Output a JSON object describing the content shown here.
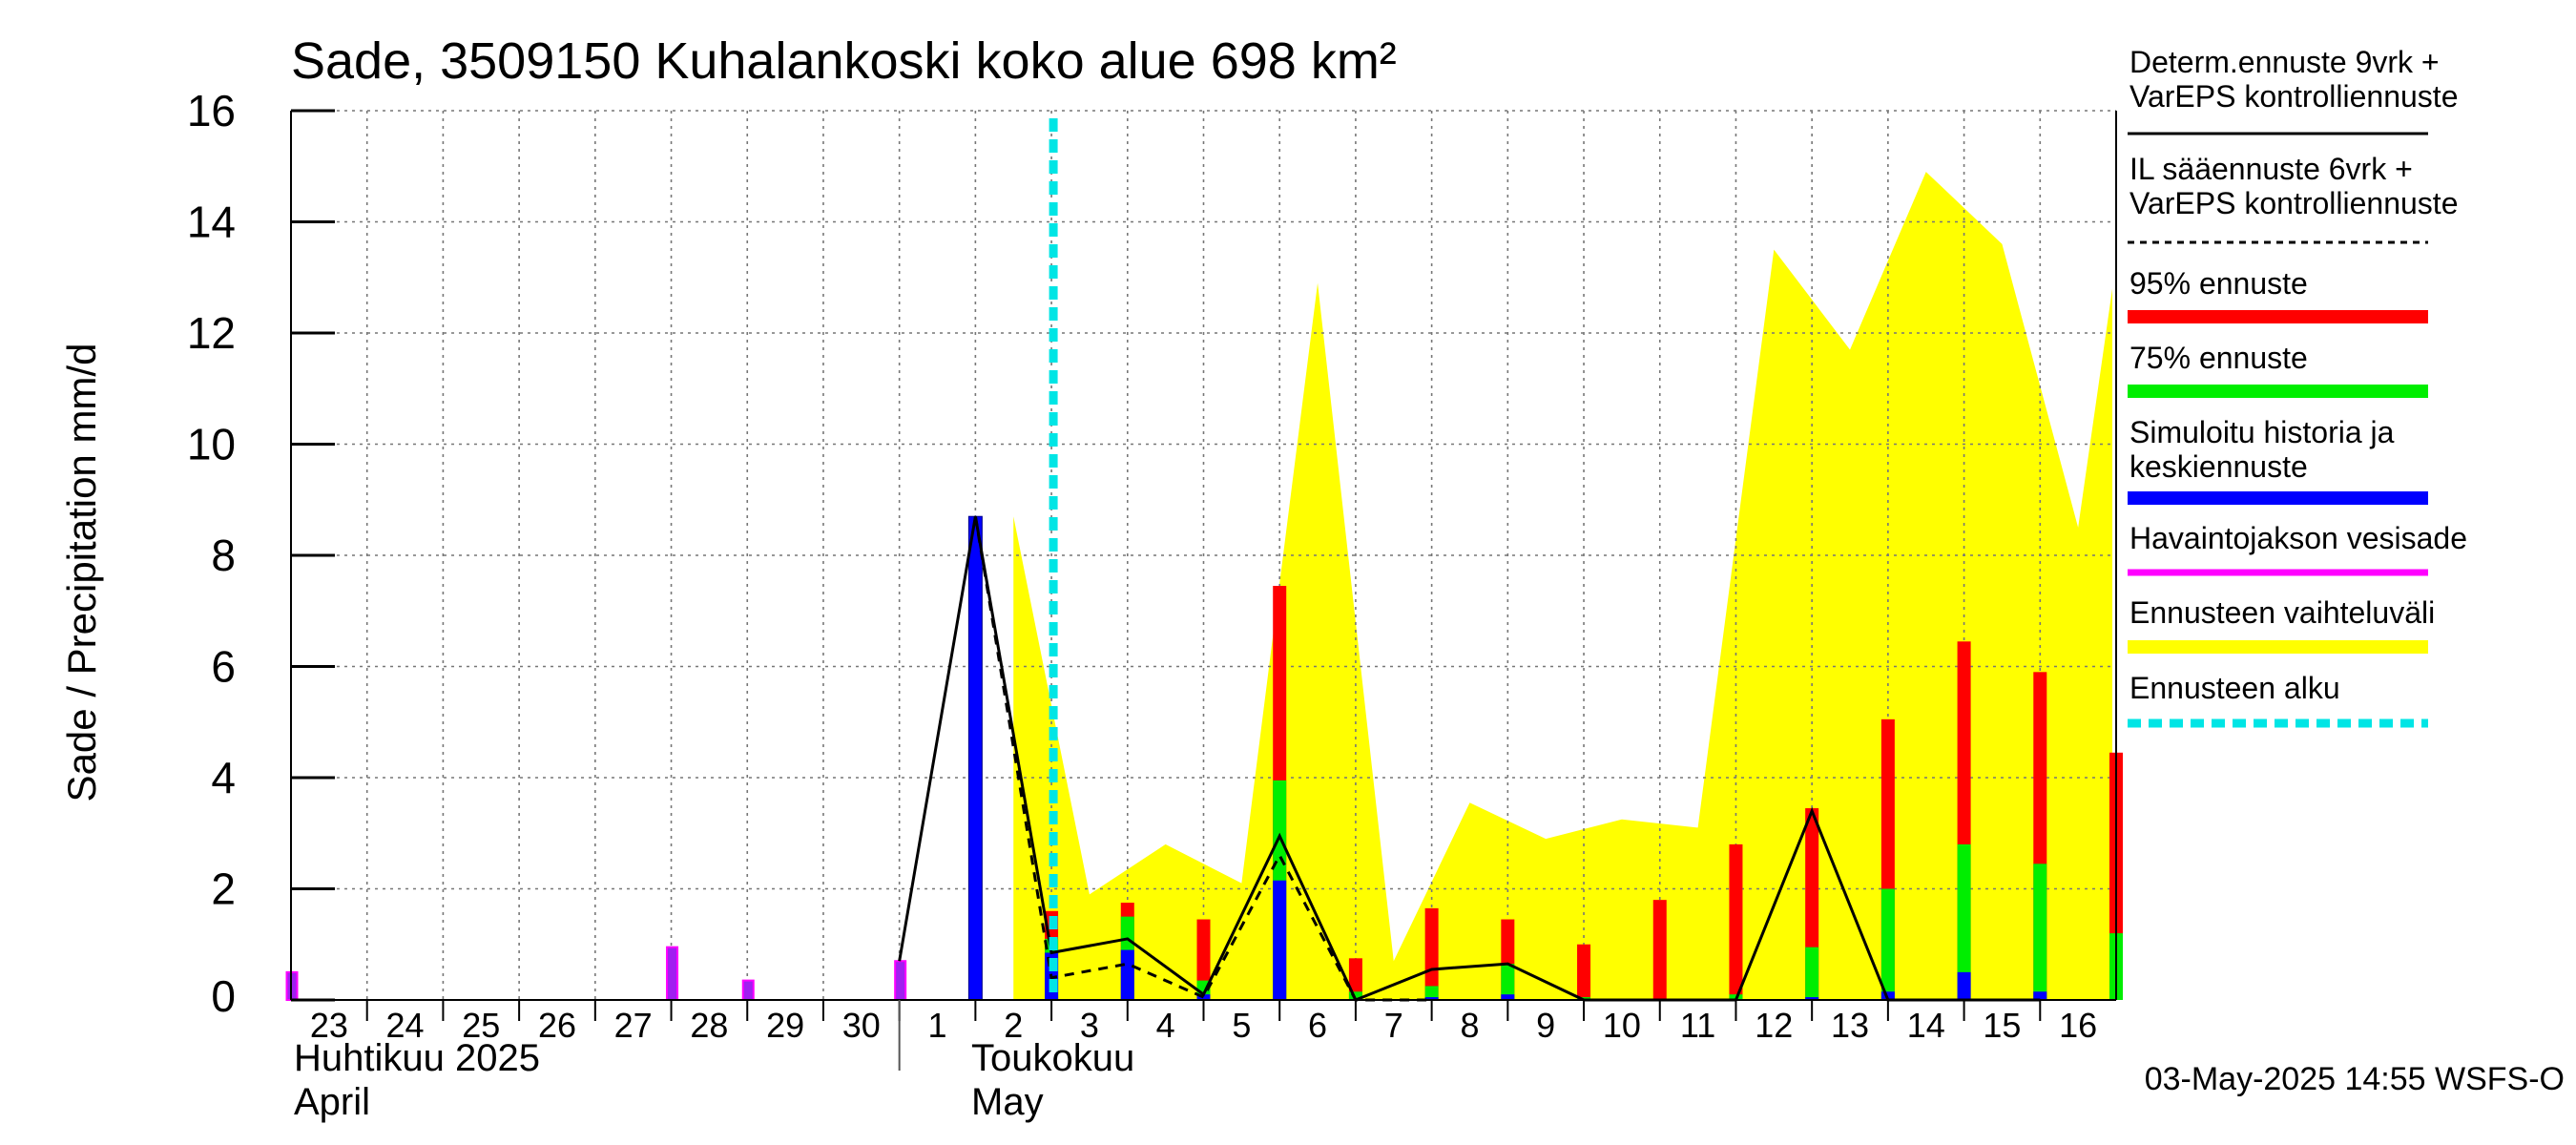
{
  "chart_data": {
    "type": "bar",
    "title": "Sade, 3509150 Kuhalankoski koko alue 698 km²",
    "ylabel": "Sade / Precipitation   mm/d",
    "ylim": [
      0,
      16
    ],
    "yticks": [
      0,
      2,
      4,
      6,
      8,
      10,
      12,
      14,
      16
    ],
    "xlim": [
      -0.5,
      23.5
    ],
    "x_ticks": [
      "23",
      "24",
      "25",
      "26",
      "27",
      "28",
      "29",
      "30",
      "1",
      "2",
      "3",
      "4",
      "5",
      "6",
      "7",
      "8",
      "9",
      "10",
      "11",
      "12",
      "13",
      "14",
      "15",
      "16"
    ],
    "month_labels": {
      "april_fi": "Huhtikuu  2025",
      "april_en": "April",
      "may_fi": "Toukokuu",
      "may_en": "May"
    },
    "forecast_start_x": 10,
    "observed_precip": [
      0.5,
      0,
      0,
      0,
      0,
      0.95,
      0.35,
      0,
      0.7
    ],
    "simulated_history": [
      0,
      0,
      0,
      0,
      0,
      0,
      0,
      0,
      0,
      8.7
    ],
    "forecast_bars": [
      {
        "day": "3",
        "mean": 0.85,
        "p75": 1.1,
        "p95": 1.6
      },
      {
        "day": "4",
        "mean": 0.9,
        "p75": 1.5,
        "p95": 1.75
      },
      {
        "day": "5",
        "mean": 0.1,
        "p75": 0.35,
        "p95": 1.45
      },
      {
        "day": "6",
        "mean": 2.15,
        "p75": 3.95,
        "p95": 7.45
      },
      {
        "day": "7",
        "mean": 0.0,
        "p75": 0.15,
        "p95": 0.75
      },
      {
        "day": "8",
        "mean": 0.05,
        "p75": 0.25,
        "p95": 1.65
      },
      {
        "day": "9",
        "mean": 0.1,
        "p75": 0.65,
        "p95": 1.45
      },
      {
        "day": "10",
        "mean": 0.0,
        "p75": 0.05,
        "p95": 1.0
      },
      {
        "day": "11",
        "mean": 0.0,
        "p75": 0.0,
        "p95": 1.8
      },
      {
        "day": "12",
        "mean": 0.0,
        "p75": 0.1,
        "p95": 2.8
      },
      {
        "day": "13",
        "mean": 0.05,
        "p75": 0.95,
        "p95": 3.45
      },
      {
        "day": "14",
        "mean": 0.15,
        "p75": 2.0,
        "p95": 5.05
      },
      {
        "day": "15",
        "mean": 0.5,
        "p75": 2.8,
        "p95": 6.45
      },
      {
        "day": "16",
        "mean": 0.15,
        "p75": 2.45,
        "p95": 5.9
      },
      {
        "day": "17",
        "mean": 0.0,
        "p75": 1.2,
        "p95": 4.45
      }
    ],
    "range_upper": {
      "x": [
        9,
        10,
        11,
        12,
        13,
        14,
        15,
        16,
        17,
        18,
        19,
        20,
        21,
        22,
        23,
        23.45
      ],
      "y": [
        8.7,
        1.9,
        2.8,
        2.1,
        12.9,
        0.7,
        3.55,
        2.9,
        3.25,
        3.1,
        13.5,
        11.7,
        14.9,
        13.6,
        8.5,
        12.8
      ]
    },
    "determ_line": {
      "x": [
        8,
        9,
        10,
        11,
        12,
        13,
        14,
        15,
        16,
        17,
        18,
        19,
        20,
        21,
        22,
        23
      ],
      "y": [
        0.7,
        8.7,
        0.85,
        1.1,
        0.1,
        2.95,
        0.0,
        0.55,
        0.65,
        0.0,
        0.0,
        0.0,
        3.4,
        0.0,
        0.0,
        0.0
      ]
    },
    "il_line": {
      "x": [
        9,
        10,
        11,
        12,
        13,
        14,
        15
      ],
      "y": [
        8.7,
        0.4,
        0.65,
        0.05,
        2.6,
        0.0,
        0.0
      ]
    },
    "legend": [
      {
        "label": "Determ.ennuste 9vrk +\nVarEPS kontrolliennuste",
        "color": "#000000",
        "style": "solid-thin"
      },
      {
        "label": "IL sääennuste 6vrk  +\n  VarEPS kontrolliennuste",
        "color": "#000000",
        "style": "dashed-thin"
      },
      {
        "label": "95% ennuste",
        "color": "#ff0000",
        "style": "thick"
      },
      {
        "label": "75% ennuste",
        "color": "#00ee00",
        "style": "thick"
      },
      {
        "label": "Simuloitu historia ja\nkeskiennuste",
        "color": "#0000ff",
        "style": "thick"
      },
      {
        "label": "Havaintojakson vesisade",
        "color": "#ff00ff",
        "style": "medium"
      },
      {
        "label": "Ennusteen vaihteluväli",
        "color": "#ffff00",
        "style": "thick"
      },
      {
        "label": "Ennusteen alku",
        "color": "#00e5e5",
        "style": "dashed-thick"
      }
    ],
    "footer": "03-May-2025 14:55 WSFS-O",
    "colors": {
      "observed": "#a020f0",
      "observed_edge": "#ff00ff",
      "p95": "#ff0000",
      "p75": "#00ee00",
      "mean": "#0000ff",
      "range": "#ffff00",
      "forecast_start": "#00e5e5"
    }
  }
}
